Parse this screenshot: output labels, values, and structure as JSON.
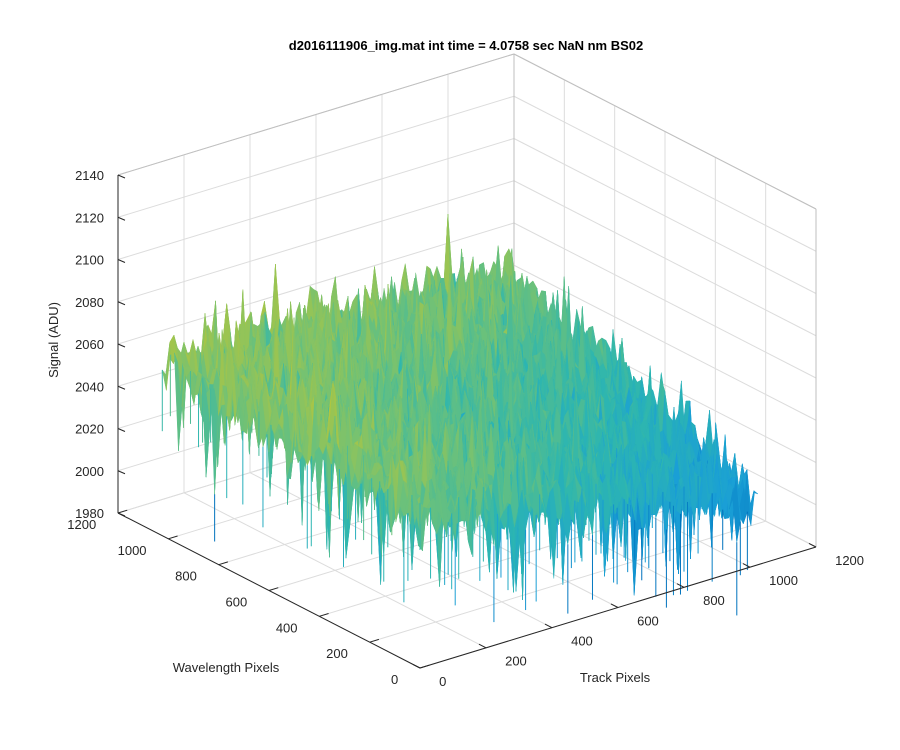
{
  "chart_data": {
    "type": "surface",
    "title": "d2016111906_img.mat int time = 4.0758 sec  NaN nm BS02",
    "xlabel": "Track Pixels",
    "ylabel": "Wavelength Pixels",
    "zlabel": "Signal (ADU)",
    "xlim": [
      0,
      1200
    ],
    "ylim": [
      0,
      1200
    ],
    "zlim": [
      1980,
      2140
    ],
    "x_ticks": [
      0,
      200,
      400,
      600,
      800,
      1000,
      1200
    ],
    "y_ticks": [
      0,
      200,
      400,
      600,
      800,
      1000,
      1200
    ],
    "z_ticks": [
      1980,
      2000,
      2020,
      2040,
      2060,
      2080,
      2100,
      2120,
      2140
    ],
    "data_extent": {
      "x": [
        0,
        1024
      ],
      "y": [
        0,
        1024
      ]
    },
    "surface_level": {
      "mean_at_corner_x0_y0": 2055,
      "mean_at_corner_x1024_y1024": 2055,
      "mean_near_x0_y1024": 2062,
      "mean_near_x1024_y0": 2012,
      "typical_min": 1995,
      "typical_max": 2120
    },
    "colormap": [
      "#0072bd",
      "#1a9fd6",
      "#2db6b0",
      "#6cc17a",
      "#b4c63c",
      "#e5ba2a",
      "#f9d12f"
    ],
    "grid": true
  }
}
